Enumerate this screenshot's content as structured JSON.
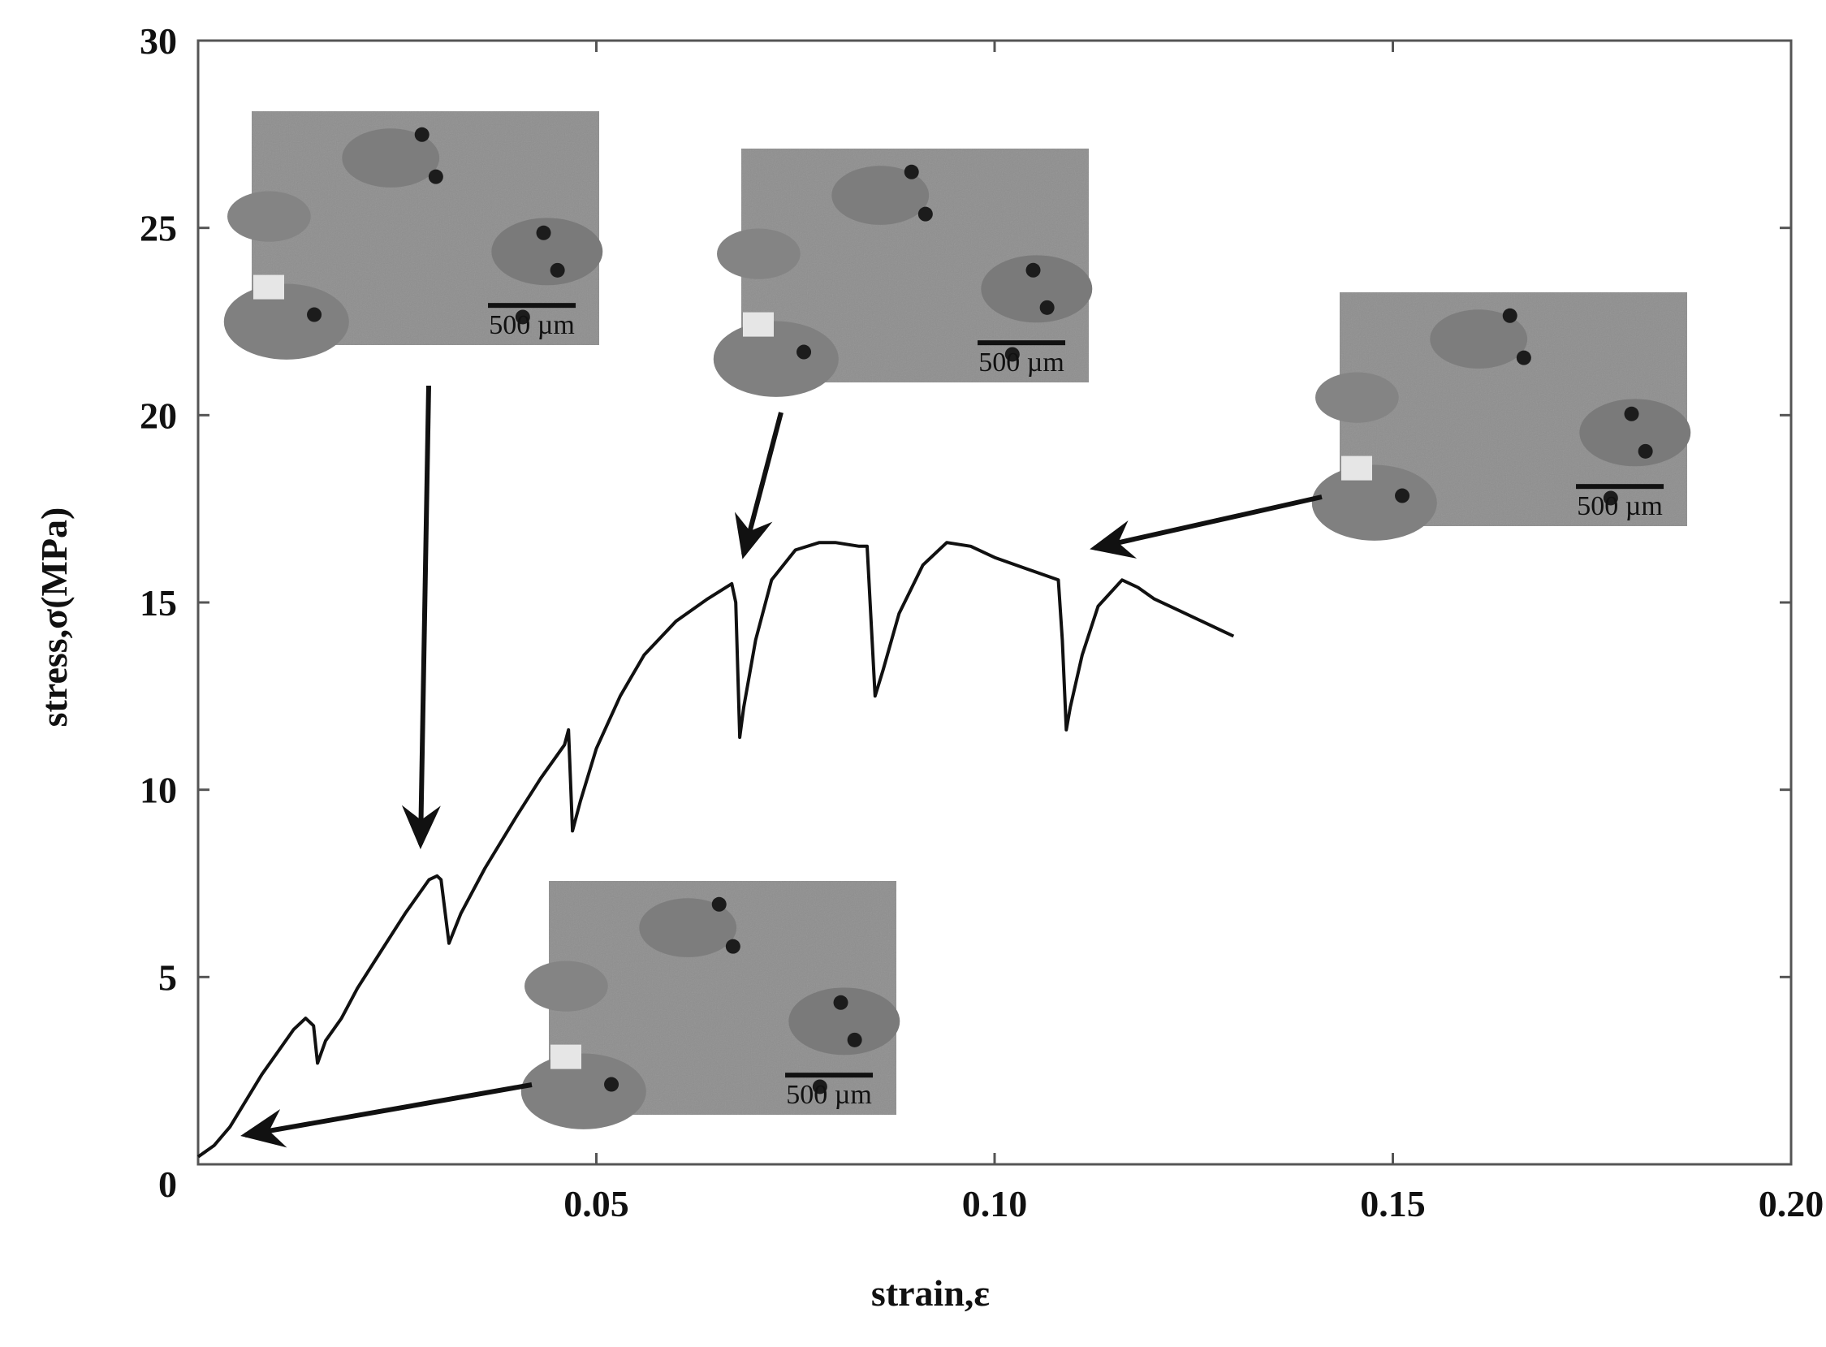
{
  "chart_data": {
    "type": "line",
    "title": "",
    "xlabel": "strain,ε",
    "ylabel": "stress,σ(MPa)",
    "xlim": [
      0,
      0.2
    ],
    "ylim": [
      0,
      30
    ],
    "x_ticks": [
      "0",
      "0.05",
      "0.10",
      "0.15",
      "0.20"
    ],
    "x_tick_values": [
      0,
      0.05,
      0.1,
      0.15,
      0.2
    ],
    "y_ticks": [
      "0",
      "5",
      "10",
      "15",
      "20",
      "25",
      "30"
    ],
    "y_tick_values": [
      0,
      5,
      10,
      15,
      20,
      25,
      30
    ],
    "grid": false,
    "series": [
      {
        "x": [
          0.0,
          0.002,
          0.004,
          0.006,
          0.008,
          0.01,
          0.012,
          0.0135,
          0.0145,
          0.015,
          0.016,
          0.018,
          0.02,
          0.023,
          0.026,
          0.029,
          0.03,
          0.0305,
          0.0315,
          0.033,
          0.036,
          0.04,
          0.043,
          0.046,
          0.0465,
          0.047,
          0.048,
          0.05,
          0.053,
          0.056,
          0.06,
          0.064,
          0.067,
          0.0675,
          0.068,
          0.0685,
          0.07,
          0.072,
          0.075,
          0.078,
          0.08,
          0.083,
          0.084,
          0.0845,
          0.085,
          0.086,
          0.088,
          0.091,
          0.094,
          0.097,
          0.1,
          0.104,
          0.108,
          0.1085,
          0.109,
          0.1095,
          0.111,
          0.113,
          0.116,
          0.118,
          0.12,
          0.123,
          0.126,
          0.129,
          0.13
        ],
        "y": [
          0.2,
          0.5,
          1.0,
          1.7,
          2.4,
          3.0,
          3.6,
          3.9,
          3.7,
          2.7,
          3.3,
          3.9,
          4.7,
          5.7,
          6.7,
          7.6,
          7.7,
          7.6,
          5.9,
          6.7,
          7.9,
          9.3,
          10.3,
          11.2,
          11.6,
          8.9,
          9.7,
          11.1,
          12.5,
          13.6,
          14.5,
          15.1,
          15.5,
          15.0,
          11.4,
          12.2,
          14.0,
          15.6,
          16.4,
          16.6,
          16.6,
          16.5,
          16.5,
          14.5,
          12.5,
          13.2,
          14.7,
          16.0,
          16.6,
          16.5,
          16.2,
          15.9,
          15.6,
          14.0,
          11.6,
          12.2,
          13.6,
          14.9,
          15.6,
          15.4,
          15.1,
          14.8,
          14.5,
          14.2,
          14.1
        ]
      }
    ]
  },
  "insets": [
    {
      "scale_label": "500 µm"
    },
    {
      "scale_label": "500 µm"
    },
    {
      "scale_label": "500 µm"
    },
    {
      "scale_label": "500 µm"
    }
  ]
}
